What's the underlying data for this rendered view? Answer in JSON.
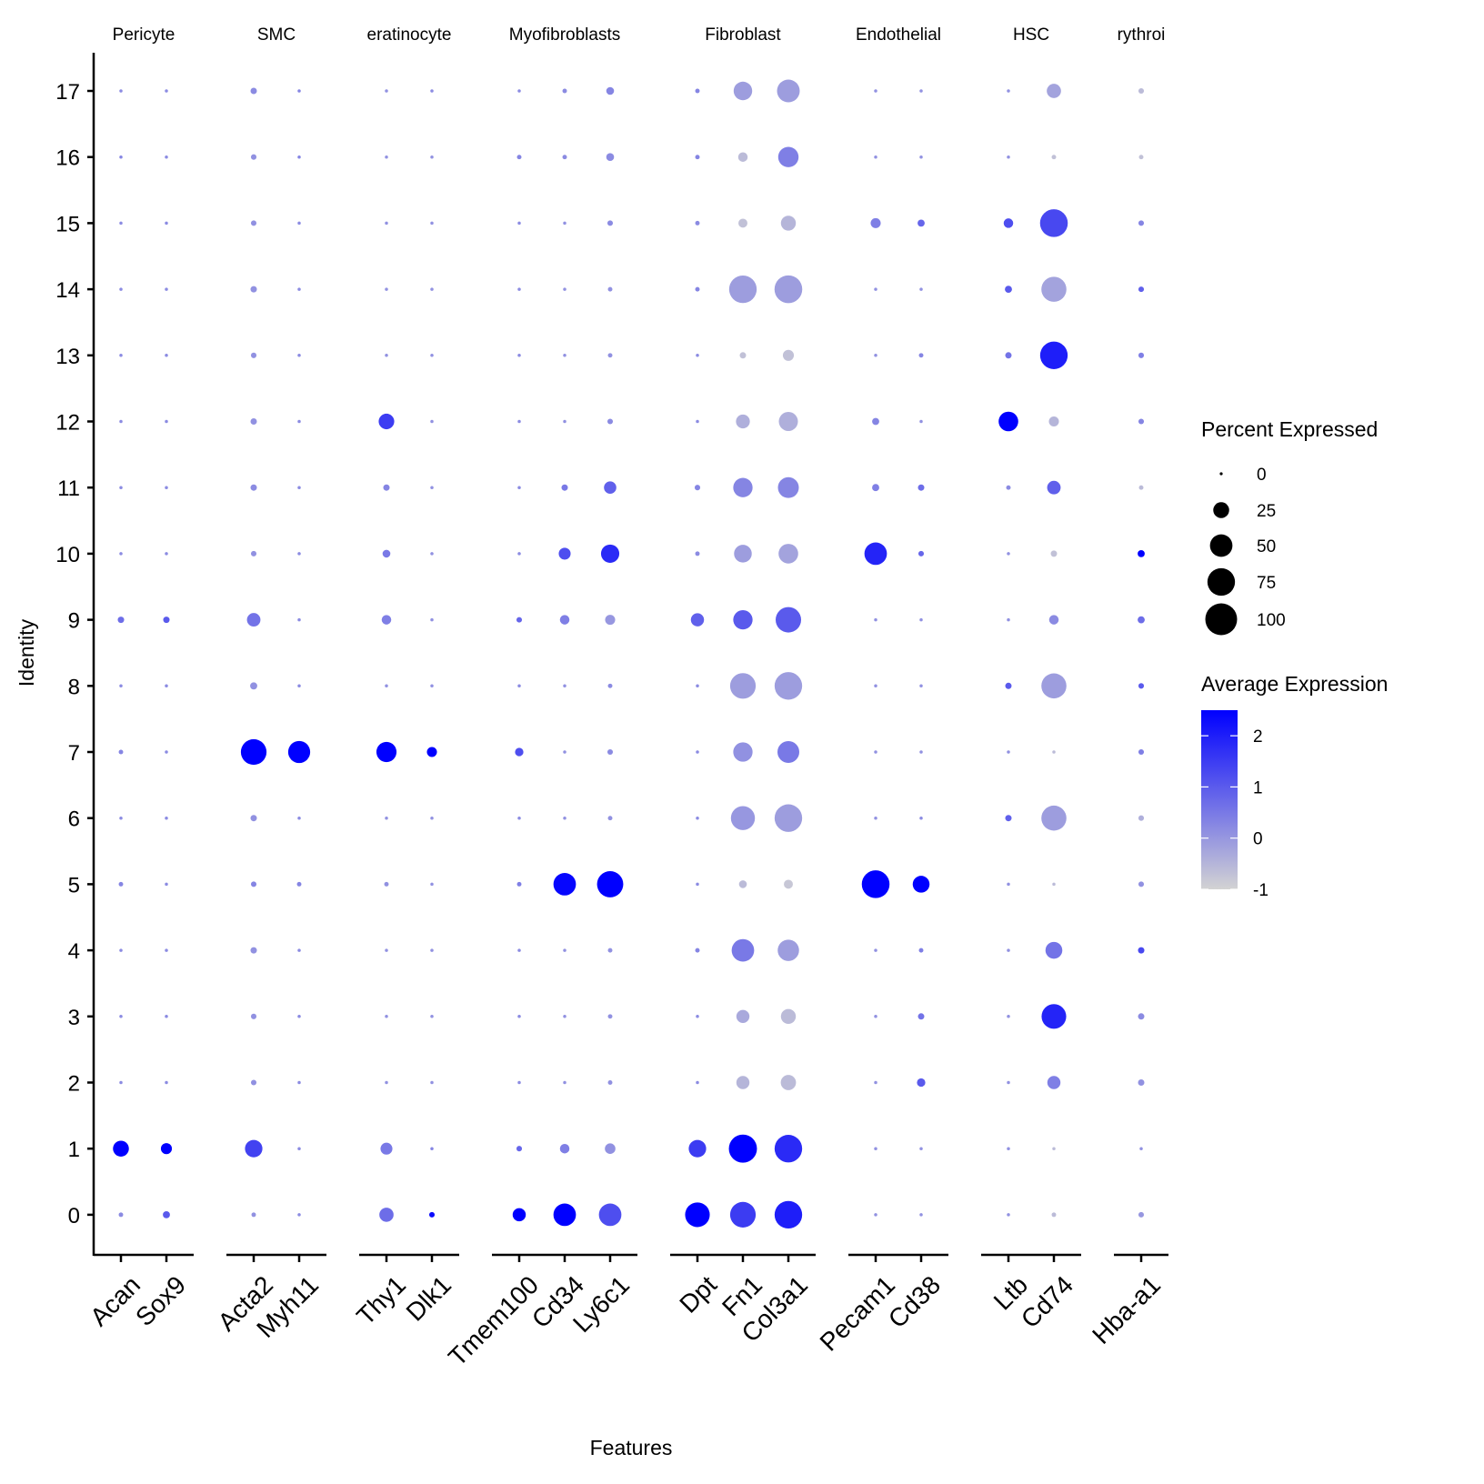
{
  "chart_data": {
    "type": "dotplot",
    "xlabel": "Features",
    "ylabel": "Identity",
    "identities": [
      "0",
      "1",
      "2",
      "3",
      "4",
      "5",
      "6",
      "7",
      "8",
      "9",
      "10",
      "11",
      "12",
      "13",
      "14",
      "15",
      "16",
      "17"
    ],
    "groups": [
      {
        "label": "Pericyte",
        "display_label": "Pericyte",
        "features": [
          "Acan",
          "Sox9"
        ]
      },
      {
        "label": "SMC",
        "display_label": "SMC",
        "features": [
          "Acta2",
          "Myh11"
        ]
      },
      {
        "label": "Keratinocyte",
        "display_label": "eratinocyte",
        "features": [
          "Thy1",
          "Dlk1"
        ]
      },
      {
        "label": "Myofibroblasts",
        "display_label": "Myofibroblasts",
        "features": [
          "Tmem100",
          "Cd34",
          "Ly6c1"
        ]
      },
      {
        "label": "Fibroblast",
        "display_label": "Fibroblast",
        "features": [
          "Dpt",
          "Fn1",
          "Col3a1"
        ]
      },
      {
        "label": "Endothelial",
        "display_label": "Endothelial",
        "features": [
          "Pecam1",
          "Cd38"
        ]
      },
      {
        "label": "HSC",
        "display_label": "HSC",
        "features": [
          "Ltb",
          "Cd74"
        ]
      },
      {
        "label": "Erythroid",
        "display_label": "rythroi",
        "features": [
          "Hba-a1"
        ]
      }
    ],
    "size_legend": {
      "title": "Percent Expressed",
      "values": [
        0,
        25,
        50,
        75,
        100
      ]
    },
    "color_legend": {
      "title": "Average Expression",
      "ticks": [
        2,
        1,
        0,
        -1
      ],
      "range": [
        -1,
        2.5
      ],
      "low_color": "#d3d3d3",
      "high_color": "#0000ff"
    },
    "series": [
      {
        "feature": "Acan",
        "pct": [
          2,
          25,
          1,
          1,
          1,
          2,
          1,
          2,
          1,
          4,
          1,
          1,
          1,
          1,
          1,
          1,
          1,
          1
        ],
        "avg_exp": [
          0.2,
          2.5,
          0.2,
          0.2,
          0.2,
          0.3,
          0.2,
          0.3,
          0.2,
          0.7,
          0.2,
          0.2,
          0.2,
          0.2,
          0.2,
          0.2,
          0.3,
          0.2
        ]
      },
      {
        "feature": "Sox9",
        "pct": [
          5,
          12,
          1,
          1,
          1,
          1,
          1,
          1,
          1,
          4,
          1,
          1,
          1,
          1,
          1,
          1,
          1,
          1
        ],
        "avg_exp": [
          1.0,
          2.5,
          0.2,
          0.2,
          0.2,
          0.2,
          0.2,
          0.2,
          0.2,
          1.0,
          0.2,
          0.2,
          0.2,
          0.2,
          0.2,
          0.2,
          0.2,
          0.2
        ]
      },
      {
        "feature": "Acta2",
        "pct": [
          2,
          30,
          3,
          3,
          4,
          3,
          4,
          65,
          5,
          18,
          3,
          4,
          4,
          3,
          4,
          3,
          3,
          4
        ],
        "avg_exp": [
          0.1,
          1.4,
          0.1,
          0.1,
          0.1,
          0.3,
          0.1,
          2.5,
          0.1,
          0.6,
          0.1,
          0.2,
          0.1,
          0.1,
          0.1,
          0.1,
          0.1,
          0.2
        ]
      },
      {
        "feature": "Myh11",
        "pct": [
          1,
          1,
          1,
          1,
          1,
          2,
          1,
          48,
          1,
          1,
          1,
          1,
          1,
          1,
          1,
          1,
          1,
          1
        ],
        "avg_exp": [
          0.2,
          0.2,
          0.2,
          0.2,
          0.2,
          0.3,
          0.2,
          2.5,
          0.2,
          0.2,
          0.2,
          0.2,
          0.2,
          0.2,
          0.2,
          0.2,
          0.3,
          0.3
        ]
      },
      {
        "feature": "Thy1",
        "pct": [
          20,
          14,
          1,
          1,
          1,
          2,
          1,
          40,
          1,
          9,
          6,
          4,
          24,
          1,
          1,
          1,
          1,
          1
        ],
        "avg_exp": [
          0.7,
          0.5,
          0.1,
          0.1,
          0.1,
          0.1,
          0.1,
          2.5,
          0.1,
          0.4,
          0.5,
          0.3,
          1.5,
          0.1,
          0.1,
          0.1,
          0.1,
          0.1
        ]
      },
      {
        "feature": "Dlk1",
        "pct": [
          3,
          1,
          1,
          1,
          1,
          1,
          1,
          10,
          1,
          1,
          1,
          1,
          1,
          1,
          1,
          1,
          1,
          1
        ],
        "avg_exp": [
          2.3,
          0.3,
          0.1,
          0.1,
          0.1,
          0.1,
          0.1,
          2.5,
          0.1,
          0.1,
          0.1,
          0.1,
          0.1,
          0.1,
          0.1,
          0.1,
          0.1,
          0.2
        ]
      },
      {
        "feature": "Tmem100",
        "pct": [
          17,
          3,
          1,
          1,
          1,
          2,
          1,
          7,
          1,
          3,
          1,
          1,
          1,
          1,
          1,
          1,
          2,
          1
        ],
        "avg_exp": [
          2.5,
          0.8,
          0.2,
          0.2,
          0.2,
          0.4,
          0.2,
          1.2,
          0.2,
          0.8,
          0.2,
          0.2,
          0.2,
          0.2,
          0.2,
          0.2,
          0.3,
          0.2
        ]
      },
      {
        "feature": "Cd34",
        "pct": [
          50,
          9,
          1,
          1,
          1,
          50,
          1,
          1,
          1,
          9,
          14,
          4,
          1,
          1,
          1,
          1,
          2,
          2
        ],
        "avg_exp": [
          2.5,
          0.4,
          0.1,
          0.1,
          0.1,
          2.4,
          0.1,
          0.1,
          0.1,
          0.4,
          1.2,
          0.5,
          0.1,
          0.1,
          0.1,
          0.1,
          0.2,
          0.2
        ]
      },
      {
        "feature": "Ly6c1",
        "pct": [
          50,
          11,
          2,
          2,
          2,
          68,
          2,
          3,
          2,
          10,
          33,
          15,
          3,
          2,
          2,
          3,
          6,
          6
        ],
        "avg_exp": [
          1.2,
          0.1,
          0.1,
          0.1,
          0.1,
          2.5,
          0.1,
          0.2,
          0.2,
          0.0,
          1.8,
          0.9,
          0.2,
          0.1,
          0.1,
          0.2,
          0.2,
          0.3
        ]
      },
      {
        "feature": "Dpt",
        "pct": [
          60,
          30,
          1,
          1,
          2,
          1,
          1,
          1,
          1,
          17,
          2,
          3,
          1,
          1,
          2,
          2,
          2,
          2
        ],
        "avg_exp": [
          2.5,
          1.5,
          0.2,
          0.2,
          0.3,
          0.2,
          0.2,
          0.2,
          0.2,
          0.9,
          0.2,
          0.3,
          0.2,
          0.2,
          0.3,
          0.2,
          0.3,
          0.3
        ]
      },
      {
        "feature": "Fn1",
        "pct": [
          65,
          78,
          17,
          17,
          50,
          6,
          57,
          37,
          65,
          37,
          31,
          37,
          19,
          4,
          75,
          8,
          9,
          34
        ],
        "avg_exp": [
          1.5,
          2.5,
          -0.5,
          -0.3,
          0.5,
          -0.6,
          0.0,
          0.1,
          -0.1,
          1.0,
          -0.1,
          0.3,
          -0.4,
          -0.7,
          -0.1,
          -0.7,
          -0.6,
          -0.1
        ]
      },
      {
        "feature": "Col3a1",
        "pct": [
          75,
          75,
          23,
          22,
          45,
          8,
          75,
          47,
          75,
          64,
          38,
          43,
          36,
          12,
          76,
          22,
          41,
          51
        ],
        "avg_exp": [
          2.0,
          1.8,
          -0.6,
          -0.6,
          -0.1,
          -0.8,
          -0.1,
          0.5,
          -0.1,
          1.0,
          -0.2,
          0.3,
          -0.4,
          -0.7,
          -0.1,
          -0.5,
          0.4,
          -0.1
        ]
      },
      {
        "feature": "Pecam1",
        "pct": [
          1,
          1,
          1,
          1,
          1,
          76,
          1,
          1,
          1,
          1,
          50,
          5,
          5,
          1,
          1,
          10,
          1,
          1
        ],
        "avg_exp": [
          0.1,
          0.1,
          0.1,
          0.1,
          0.1,
          2.5,
          0.1,
          0.1,
          0.1,
          0.1,
          1.9,
          0.4,
          0.3,
          0.1,
          0.1,
          0.4,
          0.1,
          0.1
        ]
      },
      {
        "feature": "Cd38",
        "pct": [
          1,
          1,
          7,
          4,
          2,
          28,
          1,
          1,
          1,
          1,
          3,
          4,
          1,
          2,
          1,
          5,
          1,
          1
        ],
        "avg_exp": [
          0.1,
          0.1,
          1.0,
          0.6,
          0.4,
          2.5,
          0.2,
          0.1,
          0.1,
          0.1,
          0.8,
          0.7,
          0.1,
          0.3,
          0.1,
          0.8,
          0.1,
          0.1
        ]
      },
      {
        "feature": "Ltb",
        "pct": [
          1,
          1,
          1,
          1,
          1,
          1,
          4,
          1,
          4,
          1,
          1,
          2,
          38,
          4,
          5,
          9,
          1,
          1
        ],
        "avg_exp": [
          0.1,
          0.1,
          0.1,
          0.1,
          0.1,
          0.1,
          0.9,
          0.1,
          1.0,
          0.1,
          0.1,
          0.2,
          2.5,
          0.6,
          1.0,
          1.2,
          0.1,
          0.1
        ]
      },
      {
        "feature": "Cd74",
        "pct": [
          2,
          1,
          17,
          60,
          28,
          1,
          62,
          1,
          62,
          9,
          4,
          18,
          10,
          75,
          62,
          76,
          2,
          20
        ],
        "avg_exp": [
          -0.6,
          -0.6,
          0.4,
          1.9,
          0.6,
          -0.6,
          -0.1,
          -0.6,
          -0.1,
          0.2,
          -0.7,
          0.9,
          -0.5,
          2.0,
          -0.2,
          1.3,
          -0.7,
          -0.2
        ]
      },
      {
        "feature": "Hba-a1",
        "pct": [
          3,
          1,
          4,
          4,
          4,
          3,
          3,
          3,
          3,
          5,
          5,
          2,
          3,
          3,
          3,
          3,
          2,
          3
        ],
        "avg_exp": [
          0.0,
          0.1,
          0.1,
          0.2,
          1.3,
          0.1,
          -0.4,
          0.4,
          1.0,
          0.7,
          2.5,
          -0.6,
          0.3,
          0.4,
          0.9,
          0.3,
          -0.7,
          -0.6
        ]
      }
    ]
  }
}
